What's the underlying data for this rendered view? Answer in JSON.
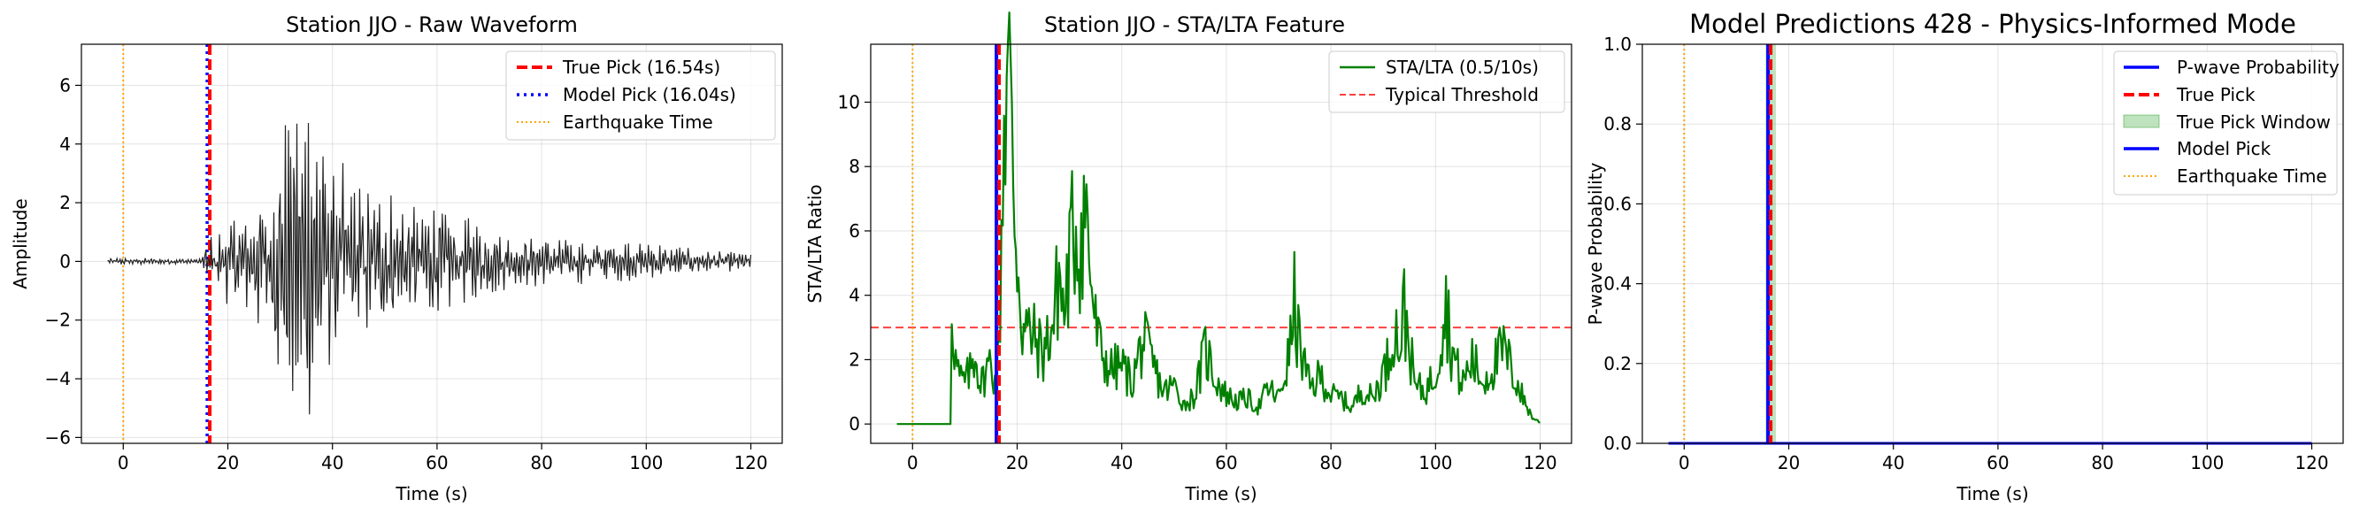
{
  "chart_data": [
    {
      "type": "line",
      "title": "Station JJO - Raw Waveform",
      "xlabel": "Time (s)",
      "ylabel": "Amplitude",
      "xlim": [
        -8,
        126
      ],
      "ylim": [
        -6.2,
        7.4
      ],
      "xticks": [
        0,
        20,
        40,
        60,
        80,
        100,
        120
      ],
      "yticks": [
        -6,
        -4,
        -2,
        0,
        2,
        4,
        6
      ],
      "grid": true,
      "legend_position": "top-right",
      "waveform": {
        "start": -3,
        "end": 120,
        "step": 0.2,
        "color": "#222222",
        "envelope": [
          [
            -3,
            0.12
          ],
          [
            15,
            0.12
          ],
          [
            16.5,
            0.9
          ],
          [
            20,
            1.5
          ],
          [
            25,
            2.0
          ],
          [
            28,
            3.5
          ],
          [
            31,
            5.0
          ],
          [
            33,
            6.2
          ],
          [
            36,
            6.0
          ],
          [
            40,
            4.5
          ],
          [
            45,
            3.0
          ],
          [
            50,
            2.6
          ],
          [
            55,
            2.3
          ],
          [
            60,
            2.0
          ],
          [
            70,
            1.2
          ],
          [
            80,
            0.9
          ],
          [
            90,
            0.8
          ],
          [
            100,
            0.7
          ],
          [
            110,
            0.45
          ],
          [
            120,
            0.3
          ]
        ]
      },
      "vlines": [
        {
          "name": "True Pick (16.54s)",
          "x": 16.54,
          "color": "#ff0000",
          "style": "dashed",
          "width": 4
        },
        {
          "name": "Model Pick (16.04s)",
          "x": 16.04,
          "color": "#0000ff",
          "style": "dotted",
          "width": 3.5
        },
        {
          "name": "Earthquake Time",
          "x": 0,
          "color": "#ffa500",
          "style": "dotted",
          "width": 2
        }
      ],
      "legend": [
        "True Pick (16.54s)",
        "Model Pick (16.04s)",
        "Earthquake Time"
      ]
    },
    {
      "type": "line",
      "title": "Station JJO - STA/LTA Feature",
      "xlabel": "Time (s)",
      "ylabel": "STA/LTA Ratio",
      "xlim": [
        -8,
        126
      ],
      "ylim": [
        -0.6,
        11.8
      ],
      "xticks": [
        0,
        20,
        40,
        60,
        80,
        100,
        120
      ],
      "yticks": [
        0,
        2,
        4,
        6,
        8,
        10
      ],
      "grid": true,
      "legend_position": "top-right",
      "series": [
        {
          "name": "STA/LTA (0.5/10s)",
          "color": "#008000",
          "start": -3,
          "end": 120,
          "step": 0.25,
          "flat_until": 7.3,
          "anchors": [
            [
              7.3,
              0.2
            ],
            [
              7.5,
              3.9
            ],
            [
              8.2,
              2.0
            ],
            [
              9,
              1.4
            ],
            [
              10,
              1.3
            ],
            [
              11,
              1.6
            ],
            [
              12,
              2.3
            ],
            [
              13,
              1.2
            ],
            [
              14,
              1.6
            ],
            [
              15,
              2.0
            ],
            [
              16,
              1.1
            ],
            [
              16.6,
              2.6
            ],
            [
              17.4,
              9.5
            ],
            [
              18.3,
              11.2
            ],
            [
              19,
              8.5
            ],
            [
              19.8,
              6.0
            ],
            [
              21,
              3.0
            ],
            [
              23,
              2.7
            ],
            [
              25,
              2.2
            ],
            [
              27,
              3.2
            ],
            [
              28,
              4.7
            ],
            [
              29,
              3.3
            ],
            [
              30,
              5.0
            ],
            [
              31,
              6.3
            ],
            [
              32,
              5.7
            ],
            [
              33,
              6.9
            ],
            [
              34,
              4.8
            ],
            [
              35,
              3.0
            ],
            [
              36,
              2.2
            ],
            [
              38,
              1.7
            ],
            [
              40,
              1.8
            ],
            [
              42,
              1.3
            ],
            [
              44,
              2.6
            ],
            [
              46,
              1.8
            ],
            [
              48,
              1.0
            ],
            [
              50,
              1.2
            ],
            [
              52,
              0.6
            ],
            [
              54,
              0.9
            ],
            [
              56,
              2.3
            ],
            [
              58,
              1.4
            ],
            [
              60,
              0.9
            ],
            [
              62,
              0.7
            ],
            [
              64,
              0.8
            ],
            [
              66,
              0.5
            ],
            [
              68,
              1.1
            ],
            [
              70,
              0.8
            ],
            [
              72,
              2.1
            ],
            [
              73,
              3.7
            ],
            [
              74,
              2.4
            ],
            [
              76,
              1.1
            ],
            [
              78,
              1.5
            ],
            [
              80,
              0.9
            ],
            [
              82,
              0.8
            ],
            [
              84,
              0.5
            ],
            [
              86,
              1.1
            ],
            [
              88,
              0.8
            ],
            [
              90,
              1.6
            ],
            [
              91,
              2.0
            ],
            [
              92,
              3.2
            ],
            [
              93,
              2.4
            ],
            [
              94,
              3.5
            ],
            [
              95,
              2.5
            ],
            [
              96,
              1.2
            ],
            [
              98,
              1.0
            ],
            [
              100,
              1.6
            ],
            [
              101,
              2.8
            ],
            [
              102,
              3.8
            ],
            [
              103,
              2.4
            ],
            [
              105,
              1.2
            ],
            [
              107,
              2.0
            ],
            [
              109,
              1.3
            ],
            [
              111,
              1.8
            ],
            [
              113,
              2.3
            ],
            [
              115,
              1.5
            ],
            [
              117,
              0.7
            ],
            [
              118.5,
              0.2
            ],
            [
              120,
              0.05
            ]
          ]
        }
      ],
      "hlines": [
        {
          "name": "Typical Threshold",
          "y": 3,
          "color": "#ff0000",
          "style": "dashed",
          "alpha": 0.75
        }
      ],
      "vlines": [
        {
          "x": 16.54,
          "color": "#ff0000",
          "style": "dashed",
          "width": 4
        },
        {
          "x": 16.04,
          "color": "#0000ff",
          "style": "solid",
          "width": 4
        },
        {
          "x": 0,
          "color": "#ffa500",
          "style": "dotted",
          "width": 2
        }
      ],
      "legend": [
        "STA/LTA (0.5/10s)",
        "Typical Threshold"
      ]
    },
    {
      "type": "line",
      "title": "Model Predictions 428 - Physics-Informed Mode",
      "xlabel": "Time (s)",
      "ylabel": "P-wave Probability",
      "xlim": [
        -8,
        126
      ],
      "ylim": [
        0,
        1
      ],
      "xticks": [
        0,
        20,
        40,
        60,
        80,
        100,
        120
      ],
      "yticks": [
        0.0,
        0.2,
        0.4,
        0.6,
        0.8,
        1.0
      ],
      "grid": true,
      "legend_position": "top-right",
      "series": [
        {
          "name": "P-wave Probability",
          "color": "#0000ff",
          "points": [
            [
              -3,
              0
            ],
            [
              120,
              0
            ]
          ]
        }
      ],
      "window": {
        "name": "True Pick Window",
        "x0": 15.54,
        "x1": 17.54,
        "color": "#2ca02c"
      },
      "vlines": [
        {
          "name": "True Pick",
          "x": 16.54,
          "color": "#ff0000",
          "style": "dashed",
          "width": 4
        },
        {
          "name": "Model Pick",
          "x": 16.04,
          "color": "#0000ff",
          "style": "solid",
          "width": 4
        },
        {
          "name": "Earthquake Time",
          "x": 0,
          "color": "#ffa500",
          "style": "dotted",
          "width": 2
        }
      ],
      "legend": [
        "P-wave Probability",
        "True Pick",
        "True Pick Window",
        "Model Pick",
        "Earthquake Time"
      ]
    }
  ]
}
